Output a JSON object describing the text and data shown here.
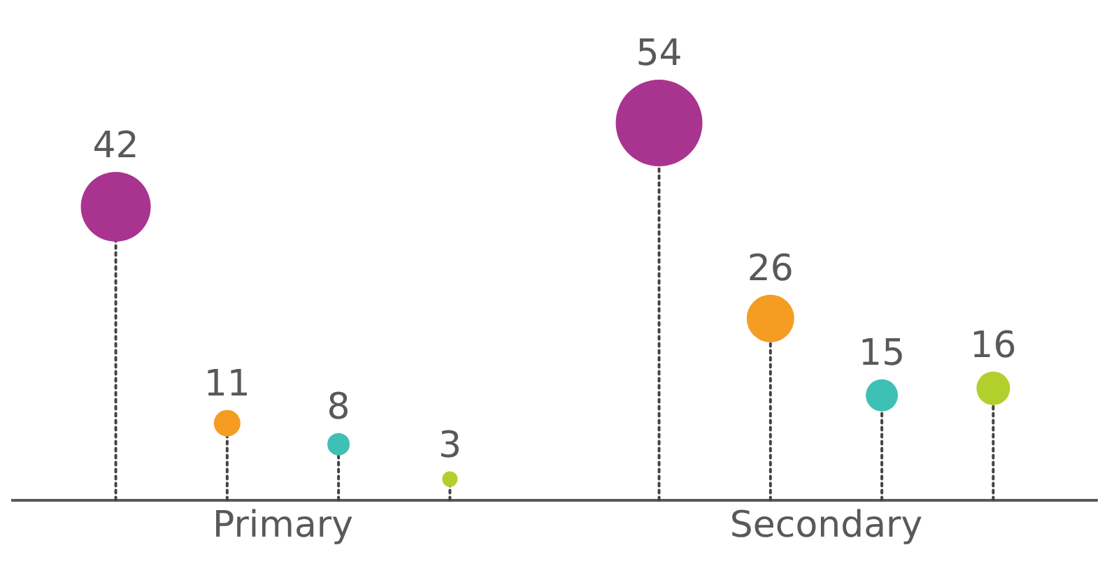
{
  "chart_data": {
    "type": "lollipop",
    "categories": [
      "Primary",
      "Secondary"
    ],
    "series": [
      {
        "color": "#a9348f",
        "values": [
          42,
          54
        ]
      },
      {
        "color": "#f59c22",
        "values": [
          11,
          26
        ]
      },
      {
        "color": "#3fc0b5",
        "values": [
          8,
          15
        ]
      },
      {
        "color": "#b2cf2c",
        "values": [
          3,
          16
        ]
      }
    ],
    "data_labels": true,
    "legend": false,
    "grid": false,
    "line_style": "dotted",
    "marker": "circle"
  }
}
